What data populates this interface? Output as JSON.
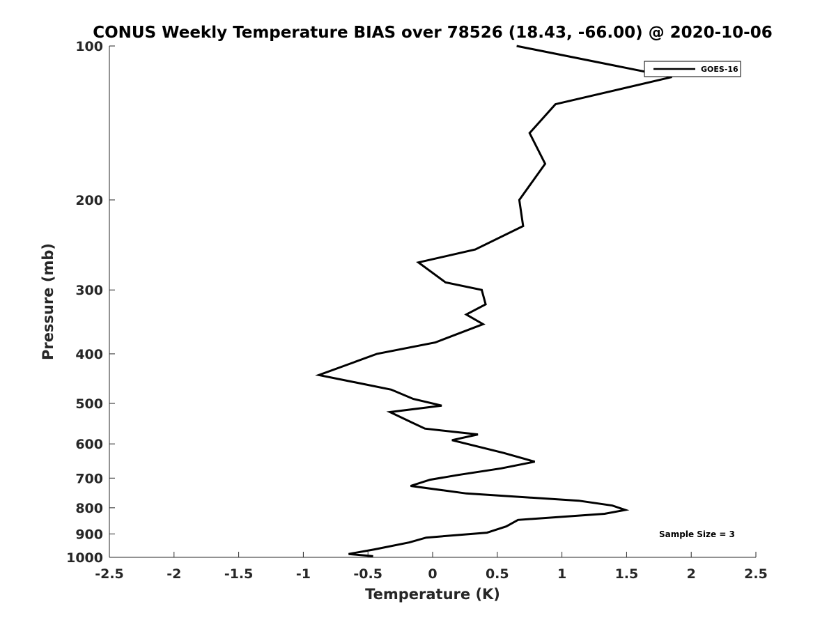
{
  "chart_data": {
    "type": "line",
    "title": "CONUS Weekly Temperature BIAS over 78526 (18.43, -66.00) @ 2020-10-06",
    "xlabel": "Temperature (K)",
    "ylabel": "Pressure (mb)",
    "xlim": [
      -2.5,
      2.5
    ],
    "ylim": [
      100,
      1000
    ],
    "y_scale": "log",
    "y_reversed": true,
    "x_ticks": [
      "-2.5",
      "-2",
      "-1.5",
      "-1",
      "-0.5",
      "0",
      "0.5",
      "1",
      "1.5",
      "2",
      "2.5"
    ],
    "x_tick_values": [
      -2.5,
      -2,
      -1.5,
      -1,
      -0.5,
      0,
      0.5,
      1,
      1.5,
      2,
      2.5
    ],
    "y_ticks": [
      "100",
      "200",
      "300",
      "400",
      "500",
      "600",
      "700",
      "800",
      "900",
      "1000"
    ],
    "y_tick_values": [
      100,
      200,
      300,
      400,
      500,
      600,
      700,
      800,
      900,
      1000
    ],
    "grid": false,
    "legend": "top-right",
    "series": [
      {
        "name": "GOES-16",
        "color": "#000000",
        "x": [
          0.65,
          1.85,
          0.95,
          0.75,
          0.87,
          0.67,
          0.7,
          0.33,
          -0.11,
          0.1,
          0.38,
          0.41,
          0.26,
          0.39,
          0.02,
          -0.43,
          -0.66,
          -0.88,
          -0.32,
          -0.15,
          0.07,
          -0.33,
          -0.16,
          -0.06,
          0.35,
          0.15,
          0.55,
          0.79,
          0.53,
          0.2,
          -0.02,
          -0.17,
          0.26,
          1.13,
          1.39,
          1.49,
          1.33,
          0.66,
          0.57,
          0.42,
          -0.05,
          -0.18,
          -0.45,
          -0.65,
          -0.46
        ],
        "y": [
          100,
          115,
          130,
          148,
          170,
          200,
          225,
          250,
          265,
          290,
          300,
          320,
          335,
          350,
          380,
          400,
          420,
          440,
          470,
          490,
          505,
          520,
          545,
          560,
          575,
          590,
          625,
          650,
          670,
          690,
          705,
          725,
          750,
          775,
          792,
          808,
          822,
          845,
          870,
          895,
          915,
          935,
          965,
          985,
          995
        ]
      }
    ],
    "annotation": "Sample Size = 3"
  }
}
